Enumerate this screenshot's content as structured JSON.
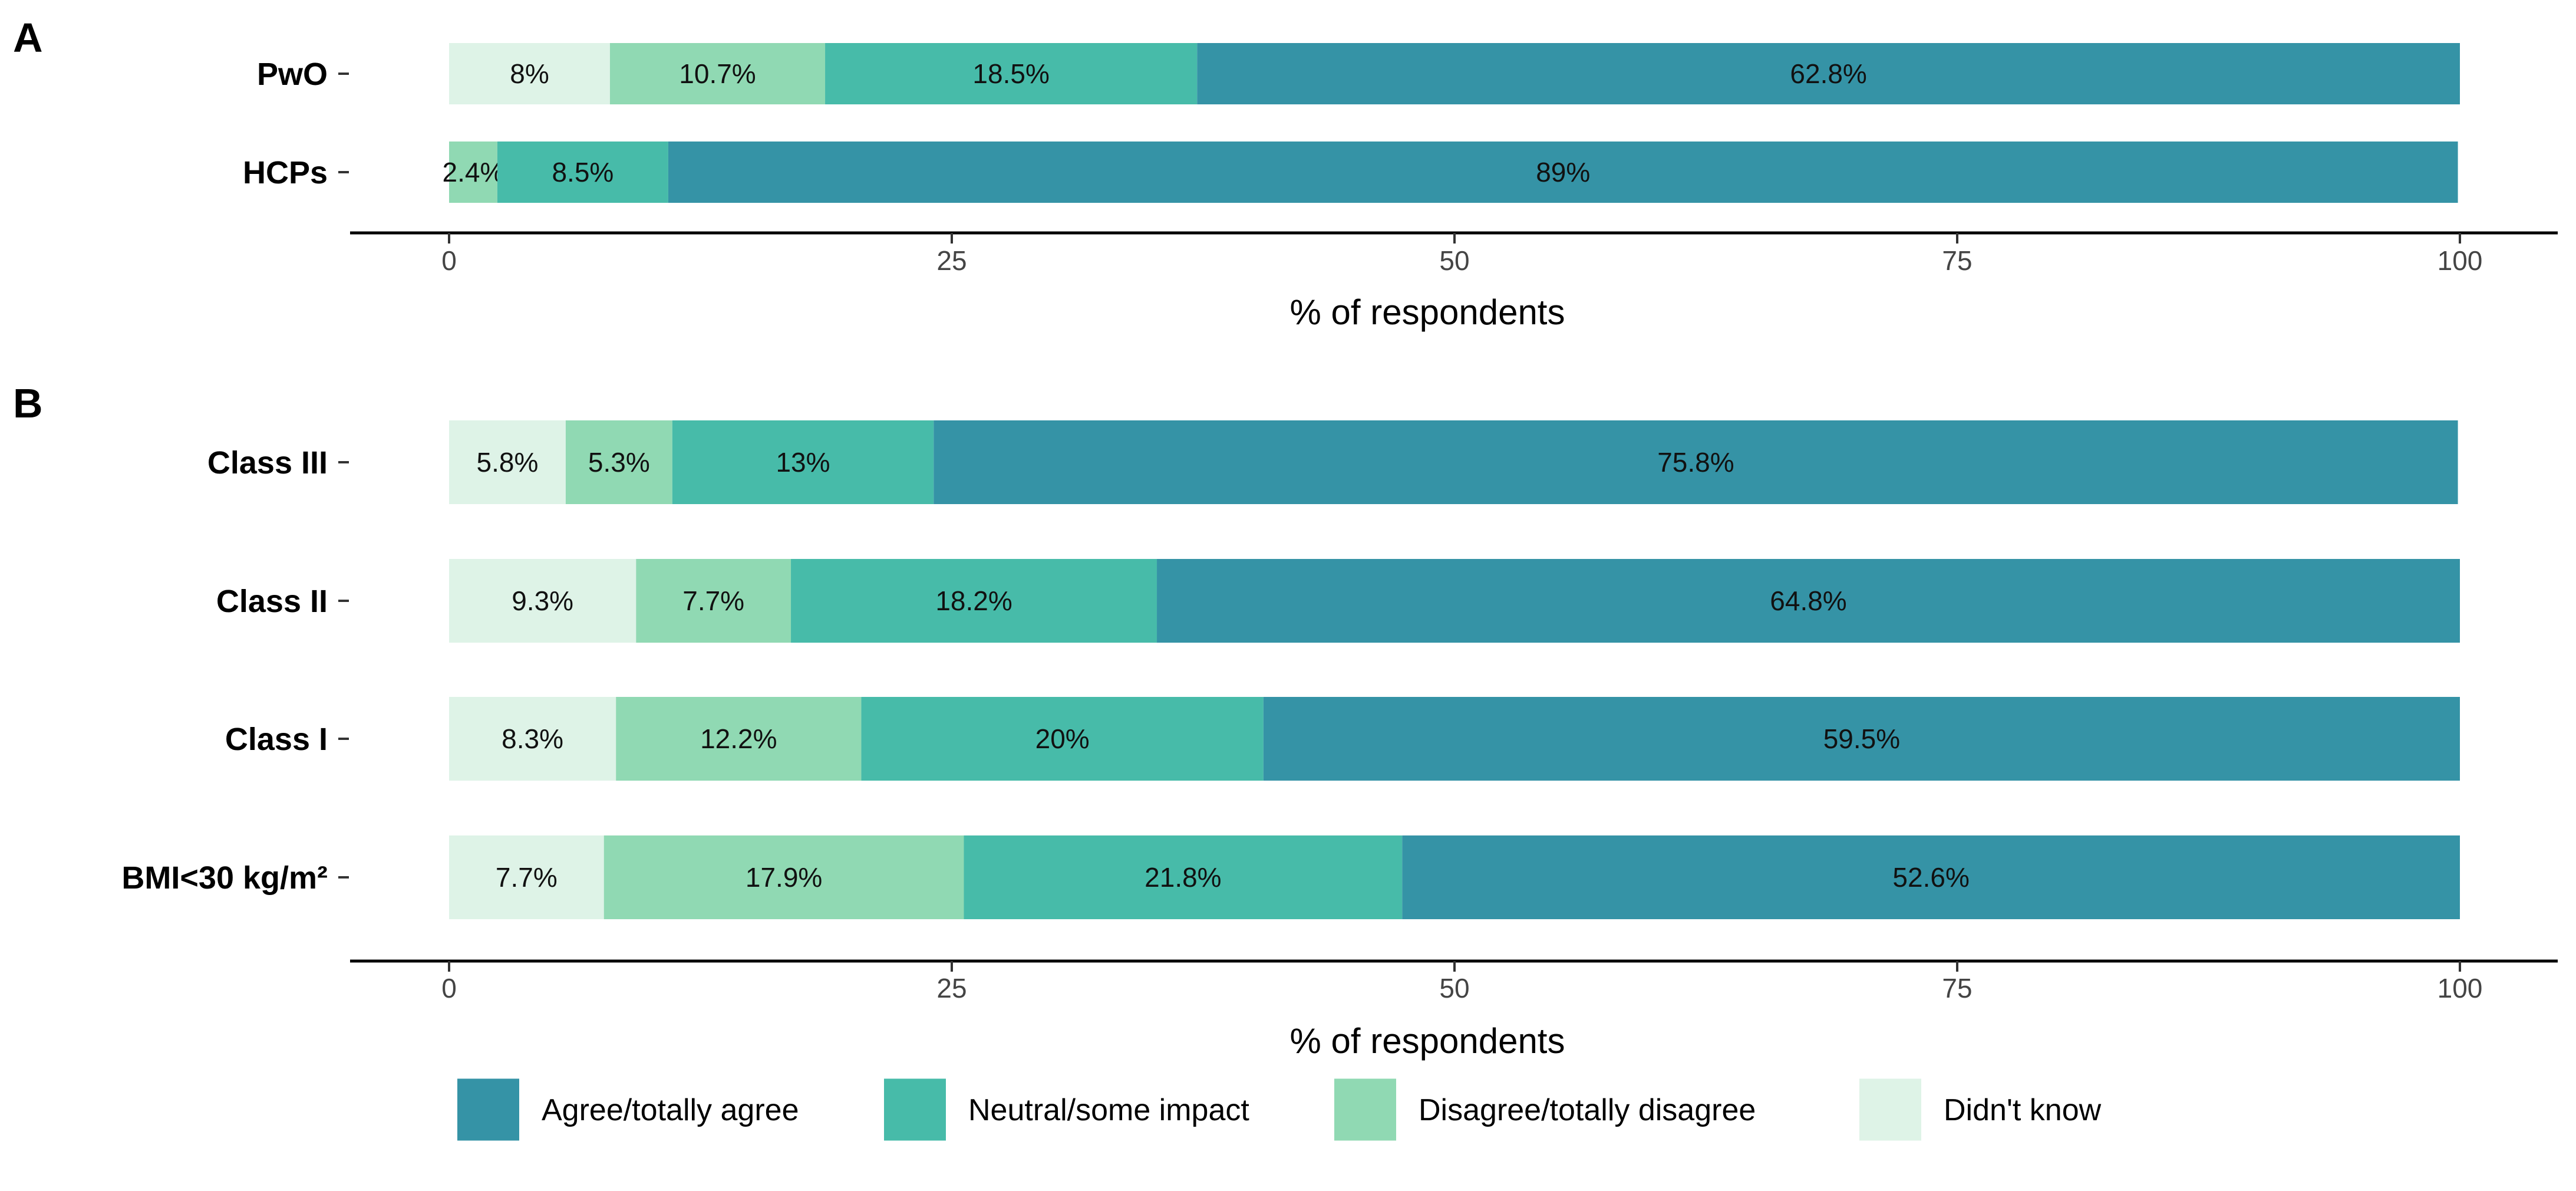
{
  "chart_data": [
    {
      "panel": "A",
      "type": "bar",
      "orientation": "horizontal",
      "stacked": true,
      "categories": [
        "PwO",
        "HCPs"
      ],
      "series": [
        {
          "name": "Didn't know",
          "color": "#def3e7",
          "values": [
            8,
            0
          ]
        },
        {
          "name": "Disagree/totally disagree",
          "color": "#90d9b3",
          "values": [
            10.7,
            2.4
          ]
        },
        {
          "name": "Neutral/some impact",
          "color": "#47bba9",
          "values": [
            18.5,
            8.5
          ]
        },
        {
          "name": "Agree/totally agree",
          "color": "#3593a6",
          "values": [
            62.8,
            89
          ]
        }
      ],
      "labels": [
        [
          "8%",
          "10.7%",
          "18.5%",
          "62.8%"
        ],
        [
          "",
          "2.4%",
          "8.5%",
          "89%"
        ]
      ],
      "xticks": [
        "0",
        "25",
        "50",
        "75",
        "100"
      ],
      "xlim": [
        0,
        100
      ],
      "xlabel": "% of respondents"
    },
    {
      "panel": "B",
      "type": "bar",
      "orientation": "horizontal",
      "stacked": true,
      "categories": [
        "Class III",
        "Class II",
        "Class I",
        "BMI<30 kg/m²"
      ],
      "series": [
        {
          "name": "Didn't know",
          "color": "#def3e7",
          "values": [
            5.8,
            9.3,
            8.3,
            7.7
          ]
        },
        {
          "name": "Disagree/totally disagree",
          "color": "#90d9b3",
          "values": [
            5.3,
            7.7,
            12.2,
            17.9
          ]
        },
        {
          "name": "Neutral/some impact",
          "color": "#47bba9",
          "values": [
            13,
            18.2,
            20,
            21.8
          ]
        },
        {
          "name": "Agree/totally agree",
          "color": "#3593a6",
          "values": [
            75.8,
            64.8,
            59.5,
            52.6
          ]
        }
      ],
      "labels": [
        [
          "5.8%",
          "5.3%",
          "13%",
          "75.8%"
        ],
        [
          "9.3%",
          "7.7%",
          "18.2%",
          "64.8%"
        ],
        [
          "8.3%",
          "12.2%",
          "20%",
          "59.5%"
        ],
        [
          "7.7%",
          "17.9%",
          "21.8%",
          "52.6%"
        ]
      ],
      "xticks": [
        "0",
        "25",
        "50",
        "75",
        "100"
      ],
      "xlim": [
        0,
        100
      ],
      "xlabel": "% of respondents"
    }
  ],
  "legend": {
    "position": "bottom",
    "items": [
      {
        "name": "Agree/totally agree",
        "color": "#3593a6"
      },
      {
        "name": "Neutral/some impact",
        "color": "#47bba9"
      },
      {
        "name": "Disagree/totally disagree",
        "color": "#90d9b3"
      },
      {
        "name": "Didn't know",
        "color": "#def3e7"
      }
    ]
  },
  "colors": {
    "axis": "#000000",
    "text": "#000000",
    "tick_text": "#444444"
  }
}
